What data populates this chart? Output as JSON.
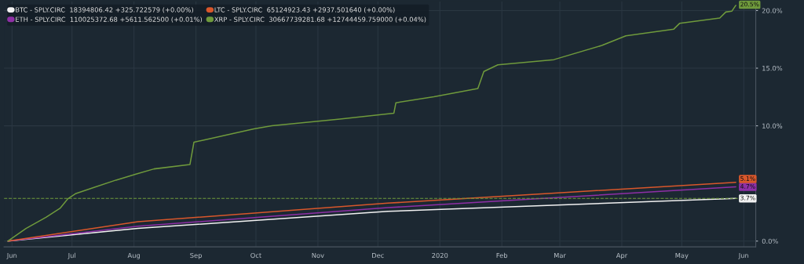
{
  "chart_data": {
    "type": "line",
    "series": [
      {
        "name": "BTC - SPLY.CIRC  18394806.42 +325.722579 (+0.00%)",
        "color": "#f2f2f2",
        "x": [
          "2019-05-30",
          "2019-08-03",
          "2019-12-06",
          "2020-05-28"
        ],
        "values": [
          0,
          1.1,
          2.58,
          3.7
        ]
      },
      {
        "name": "ETH - SPLY.CIRC  110025372.68 +5611.562500 (+0.01%)",
        "color": "#8e2fa6",
        "x": [
          "2019-05-30",
          "2019-08-03",
          "2019-12-06",
          "2020-05-28"
        ],
        "values": [
          0,
          1.29,
          2.9,
          4.7
        ]
      },
      {
        "name": "LTC - SPLY.CIRC  65124923.43 +2937.501640 (+0.00%)",
        "color": "#d9572b",
        "x": [
          "2019-05-30",
          "2019-08-03",
          "2019-12-06",
          "2020-05-28"
        ],
        "values": [
          0,
          1.68,
          3.29,
          5.1
        ]
      },
      {
        "name": "XRP - SPLY.CIRC  30667739281.68 +12744459.759000 (+0.04%)",
        "color": "#6f9a3c",
        "x": [
          "2019-05-30",
          "2019-06-08",
          "2019-06-18",
          "2019-06-25",
          "2019-06-29",
          "2019-07-03",
          "2019-07-12",
          "2019-07-23",
          "2019-08-02",
          "2019-08-11",
          "2019-08-29",
          "2019-08-31",
          "2019-09-05",
          "2019-09-30",
          "2019-10-09",
          "2019-11-12",
          "2019-12-09",
          "2019-12-10",
          "2019-12-29",
          "2020-01-20",
          "2020-01-23",
          "2020-01-30",
          "2020-02-27",
          "2020-03-22",
          "2020-04-03",
          "2020-04-27",
          "2020-04-30",
          "2020-05-20",
          "2020-05-23",
          "2020-05-26",
          "2020-05-28"
        ],
        "values": [
          0,
          1.1,
          2.06,
          2.84,
          3.68,
          4.13,
          4.65,
          5.29,
          5.81,
          6.26,
          6.65,
          8.58,
          8.77,
          9.74,
          10.0,
          10.58,
          11.1,
          12.0,
          12.52,
          13.23,
          14.71,
          15.29,
          15.74,
          16.97,
          17.81,
          18.39,
          18.9,
          19.35,
          19.87,
          19.94,
          20.45
        ]
      }
    ],
    "annotations": [
      {
        "text": "3.7%",
        "x": "2020-05-28",
        "y": 3.7
      },
      {
        "text": "4.7%",
        "x": "2020-05-28",
        "y": 4.7
      },
      {
        "text": "5.1%",
        "x": "2020-05-28",
        "y": 5.1
      },
      {
        "text": "20.5%",
        "x": "2020-05-28",
        "y": 20.5
      }
    ],
    "ref_lines": [
      {
        "axis": "y",
        "value": 3.7,
        "color": "#6f9a3c",
        "line_style": "dashed"
      }
    ],
    "xlim": [
      "2019-05-28",
      "2020-06-07"
    ],
    "xticks": [
      {
        "value": "2019-06-01",
        "label": "Jun"
      },
      {
        "value": "2019-07-01",
        "label": "Jul"
      },
      {
        "value": "2019-08-01",
        "label": "Aug"
      },
      {
        "value": "2019-09-01",
        "label": "Sep"
      },
      {
        "value": "2019-10-01",
        "label": "Oct"
      },
      {
        "value": "2019-11-01",
        "label": "Nov"
      },
      {
        "value": "2019-12-01",
        "label": "Dec"
      },
      {
        "value": "2020-01-01",
        "label": "2020"
      },
      {
        "value": "2020-02-01",
        "label": "Feb"
      },
      {
        "value": "2020-03-01",
        "label": "Mar"
      },
      {
        "value": "2020-04-01",
        "label": "Apr"
      },
      {
        "value": "2020-05-01",
        "label": "May"
      },
      {
        "value": "2020-06-01",
        "label": "Jun"
      }
    ],
    "ylim": [
      -0.5,
      20.8
    ],
    "yticks": [
      {
        "value": 0,
        "label": "0.0%"
      },
      {
        "value": 10,
        "label": "10.0%"
      },
      {
        "value": 15,
        "label": "15.0%"
      },
      {
        "value": 20,
        "label": "20.0%"
      }
    ],
    "grid": true,
    "legend": "top left",
    "marker": "none",
    "line_style": "solid"
  }
}
